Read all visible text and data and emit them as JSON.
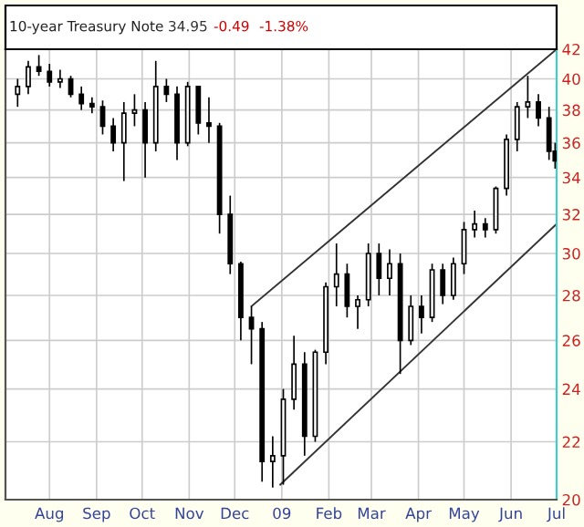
{
  "chart_data": {
    "type": "candlestick",
    "title": "10-year Treasury Note",
    "annotations": [
      "34.95",
      "-0.49",
      "-1.38%"
    ],
    "x": [
      "2008-07-11",
      "2008-07-18",
      "2008-07-25",
      "2008-08-01",
      "2008-08-08",
      "2008-08-15",
      "2008-08-22",
      "2008-08-29",
      "2008-09-05",
      "2008-09-12",
      "2008-09-19",
      "2008-09-26",
      "2008-10-03",
      "2008-10-10",
      "2008-10-17",
      "2008-10-24",
      "2008-10-31",
      "2008-11-07",
      "2008-11-14",
      "2008-11-21",
      "2008-11-28",
      "2008-12-05",
      "2008-12-12",
      "2008-12-19",
      "2008-12-26",
      "2009-01-02",
      "2009-01-09",
      "2009-01-16",
      "2009-01-23",
      "2009-01-30",
      "2009-02-06",
      "2009-02-13",
      "2009-02-20",
      "2009-02-27",
      "2009-03-06",
      "2009-03-13",
      "2009-03-20",
      "2009-03-27",
      "2009-04-03",
      "2009-04-10",
      "2009-04-17",
      "2009-04-24",
      "2009-05-01",
      "2009-05-08",
      "2009-05-15",
      "2009-05-22",
      "2009-05-29",
      "2009-06-05",
      "2009-06-12",
      "2009-06-19",
      "2009-06-26",
      "2009-06-30"
    ],
    "ohlc": [
      [
        39.0,
        40.0,
        38.2,
        39.5
      ],
      [
        39.5,
        41.2,
        39.0,
        40.8
      ],
      [
        40.8,
        41.6,
        40.2,
        40.5
      ],
      [
        40.5,
        41.0,
        39.5,
        39.8
      ],
      [
        39.8,
        40.6,
        39.4,
        40.0
      ],
      [
        40.0,
        40.2,
        38.8,
        39.0
      ],
      [
        39.0,
        39.5,
        38.0,
        38.4
      ],
      [
        38.4,
        38.8,
        37.8,
        38.2
      ],
      [
        38.2,
        38.6,
        36.5,
        37.0
      ],
      [
        37.0,
        37.5,
        35.5,
        36.0
      ],
      [
        36.0,
        38.5,
        33.8,
        37.8
      ],
      [
        37.8,
        39.0,
        37.0,
        38.0
      ],
      [
        38.0,
        38.5,
        34.0,
        36.0
      ],
      [
        36.0,
        41.2,
        35.5,
        39.5
      ],
      [
        39.5,
        40.0,
        38.5,
        39.0
      ],
      [
        39.0,
        39.5,
        35.0,
        36.0
      ],
      [
        36.0,
        39.8,
        35.8,
        39.5
      ],
      [
        39.5,
        39.5,
        36.5,
        37.2
      ],
      [
        37.2,
        38.8,
        36.0,
        37.0
      ],
      [
        37.0,
        37.2,
        31.0,
        32.0
      ],
      [
        32.0,
        33.0,
        29.0,
        29.5
      ],
      [
        29.5,
        29.6,
        26.0,
        27.0
      ],
      [
        27.0,
        27.5,
        25.0,
        26.5
      ],
      [
        26.5,
        26.8,
        20.6,
        21.3
      ],
      [
        21.3,
        22.2,
        20.4,
        21.5
      ],
      [
        21.5,
        24.0,
        20.5,
        23.6
      ],
      [
        23.6,
        26.2,
        23.2,
        25.0
      ],
      [
        25.0,
        25.5,
        21.5,
        22.2
      ],
      [
        22.2,
        25.6,
        22.0,
        25.5
      ],
      [
        25.5,
        28.6,
        25.0,
        28.4
      ],
      [
        28.4,
        30.5,
        27.5,
        29.0
      ],
      [
        29.0,
        29.5,
        27.0,
        27.5
      ],
      [
        27.5,
        28.0,
        26.5,
        27.8
      ],
      [
        27.8,
        30.5,
        27.5,
        30.0
      ],
      [
        30.0,
        30.5,
        28.0,
        28.8
      ],
      [
        28.8,
        30.2,
        28.0,
        29.5
      ],
      [
        29.5,
        30.0,
        24.6,
        26.0
      ],
      [
        26.0,
        28.0,
        25.8,
        27.5
      ],
      [
        27.5,
        28.0,
        26.3,
        27.0
      ],
      [
        27.0,
        29.5,
        26.8,
        29.2
      ],
      [
        29.2,
        29.5,
        27.6,
        28.0
      ],
      [
        28.0,
        29.8,
        27.8,
        29.5
      ],
      [
        29.5,
        31.6,
        29.0,
        31.2
      ],
      [
        31.2,
        32.2,
        30.8,
        31.5
      ],
      [
        31.5,
        31.8,
        30.8,
        31.2
      ],
      [
        31.2,
        33.5,
        31.0,
        33.4
      ],
      [
        33.4,
        36.5,
        33.0,
        36.2
      ],
      [
        36.2,
        38.5,
        35.5,
        38.2
      ],
      [
        38.2,
        40.2,
        37.5,
        38.5
      ],
      [
        38.5,
        39.0,
        37.0,
        37.5
      ],
      [
        37.5,
        38.2,
        35.0,
        35.5
      ],
      [
        35.5,
        36.0,
        34.5,
        34.95
      ]
    ],
    "color": "#000000",
    "series": [
      {
        "type": "line",
        "color": "#333333",
        "x": [
          "2008-12-12",
          "2009-07-01"
        ],
        "values": [
          27.5,
          42
        ]
      },
      {
        "type": "line",
        "color": "#333333",
        "x": [
          "2008-12-31",
          "2009-07-01"
        ],
        "values": [
          20.5,
          31.5
        ]
      }
    ],
    "log": true,
    "xlim": [
      "2008-07-03",
      "2009-07-01"
    ],
    "xticks": [
      {
        "value": "2008-08-01",
        "label": "Aug"
      },
      {
        "value": "2008-09-01",
        "label": "Sep"
      },
      {
        "value": "2008-10-01",
        "label": "Oct"
      },
      {
        "value": "2008-11-01",
        "label": "Nov"
      },
      {
        "value": "2008-12-01",
        "label": "Dec"
      },
      {
        "value": "2009-01-01",
        "label": "09"
      },
      {
        "value": "2009-02-01",
        "label": "Feb"
      },
      {
        "value": "2009-03-01",
        "label": "Mar"
      },
      {
        "value": "2009-04-01",
        "label": "Apr"
      },
      {
        "value": "2009-05-01",
        "label": "May"
      },
      {
        "value": "2009-06-01",
        "label": "Jun"
      },
      {
        "value": "2009-07-01",
        "label": "Jul"
      }
    ],
    "ylim": [
      20,
      42
    ],
    "yticks": [
      20,
      22,
      24,
      26,
      28,
      30,
      32,
      34,
      36,
      38,
      40,
      42
    ],
    "grid": true
  }
}
